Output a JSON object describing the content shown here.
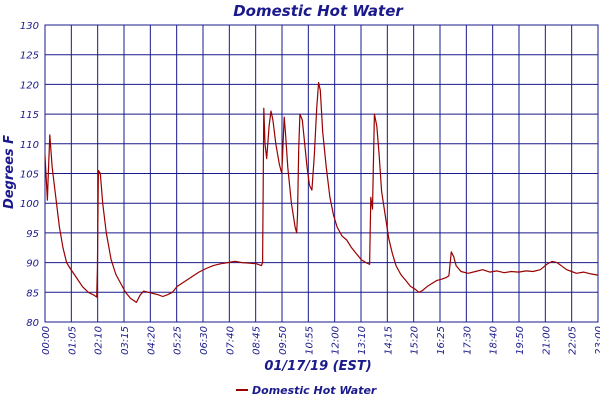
{
  "chart_data": {
    "type": "line",
    "title": "Domestic Hot Water",
    "xlabel": "01/17/19 (EST)",
    "ylabel": "Degrees F",
    "ylim": [
      80,
      130
    ],
    "yticks": [
      80,
      85,
      90,
      95,
      100,
      105,
      110,
      115,
      120,
      125,
      130
    ],
    "xticks": [
      "00:00",
      "01:05",
      "02:10",
      "03:15",
      "04:20",
      "05:25",
      "06:30",
      "07:40",
      "08:45",
      "09:50",
      "10:55",
      "12:00",
      "13:10",
      "14:15",
      "15:20",
      "16:25",
      "17:30",
      "18:40",
      "19:50",
      "21:00",
      "22:05",
      "23:00"
    ],
    "x_hours_range": [
      0,
      23
    ],
    "grid": true,
    "legend_position": "bottom",
    "colors": {
      "series": "#990000",
      "grid": "#1a1a8c",
      "text": "#1a1a8c"
    },
    "series": [
      {
        "name": "Domestic Hot Water",
        "points": [
          [
            0.0,
            108
          ],
          [
            0.1,
            100.5
          ],
          [
            0.13,
            104
          ],
          [
            0.2,
            111.5
          ],
          [
            0.3,
            106
          ],
          [
            0.45,
            101
          ],
          [
            0.6,
            96
          ],
          [
            0.75,
            92.5
          ],
          [
            0.9,
            90
          ],
          [
            1.05,
            89
          ],
          [
            1.3,
            87.5
          ],
          [
            1.55,
            86
          ],
          [
            1.8,
            85
          ],
          [
            2.05,
            84.5
          ],
          [
            2.15,
            84.2
          ],
          [
            2.18,
            89
          ],
          [
            2.22,
            105.5
          ],
          [
            2.3,
            105
          ],
          [
            2.4,
            100
          ],
          [
            2.55,
            95
          ],
          [
            2.75,
            90.5
          ],
          [
            2.95,
            88
          ],
          [
            3.15,
            86.5
          ],
          [
            3.35,
            85
          ],
          [
            3.55,
            84
          ],
          [
            3.8,
            83.3
          ],
          [
            3.95,
            84.5
          ],
          [
            4.1,
            85.2
          ],
          [
            4.3,
            85
          ],
          [
            4.5,
            84.8
          ],
          [
            4.7,
            84.6
          ],
          [
            4.9,
            84.3
          ],
          [
            5.1,
            84.6
          ],
          [
            5.3,
            85
          ],
          [
            5.5,
            86
          ],
          [
            5.8,
            86.8
          ],
          [
            6.1,
            87.6
          ],
          [
            6.4,
            88.4
          ],
          [
            6.7,
            89
          ],
          [
            7.0,
            89.5
          ],
          [
            7.3,
            89.8
          ],
          [
            7.6,
            90
          ],
          [
            7.9,
            90.2
          ],
          [
            8.2,
            90
          ],
          [
            8.5,
            89.9
          ],
          [
            8.8,
            89.8
          ],
          [
            9.0,
            89.5
          ],
          [
            9.05,
            90
          ],
          [
            9.1,
            116
          ],
          [
            9.15,
            110
          ],
          [
            9.22,
            107.5
          ],
          [
            9.32,
            113
          ],
          [
            9.4,
            115.5
          ],
          [
            9.48,
            114
          ],
          [
            9.6,
            110
          ],
          [
            9.75,
            106.5
          ],
          [
            9.85,
            105
          ],
          [
            9.95,
            114.5
          ],
          [
            10.0,
            112
          ],
          [
            10.1,
            106
          ],
          [
            10.25,
            100
          ],
          [
            10.4,
            96
          ],
          [
            10.47,
            95
          ],
          [
            10.5,
            98
          ],
          [
            10.55,
            109
          ],
          [
            10.6,
            115
          ],
          [
            10.7,
            114
          ],
          [
            10.8,
            110
          ],
          [
            10.9,
            106
          ],
          [
            11.0,
            103
          ],
          [
            11.1,
            102.2
          ],
          [
            11.2,
            108
          ],
          [
            11.3,
            116
          ],
          [
            11.38,
            120.3
          ],
          [
            11.45,
            119
          ],
          [
            11.55,
            112
          ],
          [
            11.7,
            106
          ],
          [
            11.85,
            101
          ],
          [
            12.0,
            98
          ],
          [
            12.15,
            96
          ],
          [
            12.35,
            94.5
          ],
          [
            12.55,
            93.8
          ],
          [
            12.75,
            92.5
          ],
          [
            12.95,
            91.5
          ],
          [
            13.15,
            90.5
          ],
          [
            13.35,
            90
          ],
          [
            13.5,
            89.7
          ],
          [
            13.55,
            101
          ],
          [
            13.62,
            99
          ],
          [
            13.7,
            115
          ],
          [
            13.8,
            113
          ],
          [
            13.9,
            108
          ],
          [
            14.0,
            102
          ],
          [
            14.15,
            98
          ],
          [
            14.3,
            94
          ],
          [
            14.45,
            91.5
          ],
          [
            14.6,
            89.5
          ],
          [
            14.8,
            88
          ],
          [
            15.0,
            87
          ],
          [
            15.2,
            86
          ],
          [
            15.4,
            85.5
          ],
          [
            15.55,
            85
          ],
          [
            15.7,
            85.3
          ],
          [
            15.9,
            86
          ],
          [
            16.1,
            86.5
          ],
          [
            16.3,
            87
          ],
          [
            16.5,
            87.2
          ],
          [
            16.7,
            87.5
          ],
          [
            16.8,
            87.8
          ],
          [
            16.9,
            91.8
          ],
          [
            17.0,
            91
          ],
          [
            17.1,
            89.5
          ],
          [
            17.3,
            88.5
          ],
          [
            17.6,
            88.2
          ],
          [
            17.9,
            88.5
          ],
          [
            18.2,
            88.8
          ],
          [
            18.5,
            88.4
          ],
          [
            18.8,
            88.6
          ],
          [
            19.1,
            88.3
          ],
          [
            19.4,
            88.5
          ],
          [
            19.7,
            88.4
          ],
          [
            20.0,
            88.6
          ],
          [
            20.3,
            88.5
          ],
          [
            20.6,
            88.8
          ],
          [
            20.9,
            89.8
          ],
          [
            21.1,
            90.2
          ],
          [
            21.3,
            90
          ],
          [
            21.5,
            89.4
          ],
          [
            21.7,
            88.8
          ],
          [
            21.9,
            88.5
          ],
          [
            22.1,
            88.2
          ],
          [
            22.4,
            88.4
          ],
          [
            22.7,
            88.1
          ],
          [
            23.0,
            87.9
          ]
        ]
      }
    ]
  }
}
